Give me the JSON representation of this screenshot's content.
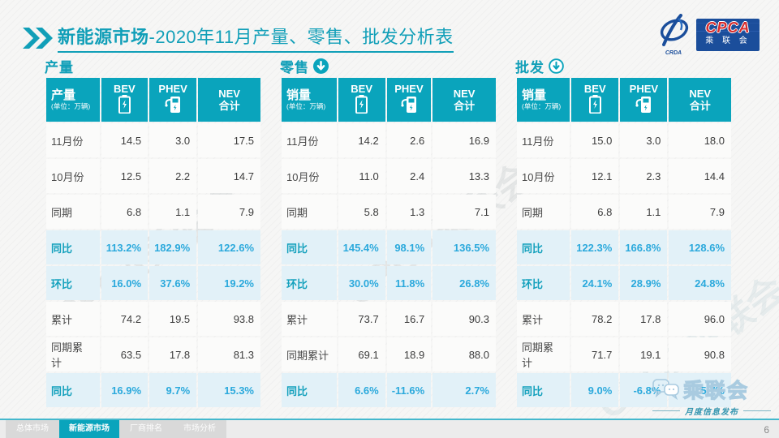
{
  "page": {
    "title_prefix": "新能源市场",
    "title_rest": "-2020年11月产量、零售、批发分析表",
    "page_number": "6",
    "watermark": "CPCA乘联会"
  },
  "logo": {
    "cpca": "CPCA",
    "crda": "CRDA",
    "org": "乘 联 会"
  },
  "columns": {
    "bev": "BEV",
    "phev": "PHEV",
    "nev_line1": "NEV",
    "nev_line2": "合计"
  },
  "unit_note": "(单位：万辆)",
  "tables": [
    {
      "section": "产量",
      "arrow": "none",
      "first_col": "产量",
      "rows": [
        {
          "label": "11月份",
          "bev": "14.5",
          "phev": "3.0",
          "nev": "17.5",
          "hl": false
        },
        {
          "label": "10月份",
          "bev": "12.5",
          "phev": "2.2",
          "nev": "14.7",
          "hl": false
        },
        {
          "label": "同期",
          "bev": "6.8",
          "phev": "1.1",
          "nev": "7.9",
          "hl": false
        },
        {
          "label": "同比",
          "bev": "113.2%",
          "phev": "182.9%",
          "nev": "122.6%",
          "hl": true
        },
        {
          "label": "环比",
          "bev": "16.0%",
          "phev": "37.6%",
          "nev": "19.2%",
          "hl": true
        },
        {
          "label": "累计",
          "bev": "74.2",
          "phev": "19.5",
          "nev": "93.8",
          "hl": false
        },
        {
          "label": "同期累计",
          "bev": "63.5",
          "phev": "17.8",
          "nev": "81.3",
          "hl": false
        },
        {
          "label": "同比",
          "bev": "16.9%",
          "phev": "9.7%",
          "nev": "15.3%",
          "hl": true
        }
      ]
    },
    {
      "section": "零售",
      "arrow": "filled",
      "first_col": "销量",
      "rows": [
        {
          "label": "11月份",
          "bev": "14.2",
          "phev": "2.6",
          "nev": "16.9",
          "hl": false
        },
        {
          "label": "10月份",
          "bev": "11.0",
          "phev": "2.4",
          "nev": "13.3",
          "hl": false
        },
        {
          "label": "同期",
          "bev": "5.8",
          "phev": "1.3",
          "nev": "7.1",
          "hl": false
        },
        {
          "label": "同比",
          "bev": "145.4%",
          "phev": "98.1%",
          "nev": "136.5%",
          "hl": true
        },
        {
          "label": "环比",
          "bev": "30.0%",
          "phev": "11.8%",
          "nev": "26.8%",
          "hl": true
        },
        {
          "label": "累计",
          "bev": "73.7",
          "phev": "16.7",
          "nev": "90.3",
          "hl": false
        },
        {
          "label": "同期累计",
          "bev": "69.1",
          "phev": "18.9",
          "nev": "88.0",
          "hl": false
        },
        {
          "label": "同比",
          "bev": "6.6%",
          "phev": "-11.6%",
          "nev": "2.7%",
          "hl": true
        }
      ]
    },
    {
      "section": "批发",
      "arrow": "outline",
      "first_col": "销量",
      "rows": [
        {
          "label": "11月份",
          "bev": "15.0",
          "phev": "3.0",
          "nev": "18.0",
          "hl": false
        },
        {
          "label": "10月份",
          "bev": "12.1",
          "phev": "2.3",
          "nev": "14.4",
          "hl": false
        },
        {
          "label": "同期",
          "bev": "6.8",
          "phev": "1.1",
          "nev": "7.9",
          "hl": false
        },
        {
          "label": "同比",
          "bev": "122.3%",
          "phev": "166.8%",
          "nev": "128.6%",
          "hl": true
        },
        {
          "label": "环比",
          "bev": "24.1%",
          "phev": "28.9%",
          "nev": "24.8%",
          "hl": true
        },
        {
          "label": "累计",
          "bev": "78.2",
          "phev": "17.8",
          "nev": "96.0",
          "hl": false
        },
        {
          "label": "同期累计",
          "bev": "71.7",
          "phev": "19.1",
          "nev": "90.8",
          "hl": false
        },
        {
          "label": "同比",
          "bev": "9.0%",
          "phev": "-6.8%",
          "nev": "5.7%",
          "hl": true
        }
      ]
    }
  ],
  "footer": {
    "tabs": [
      {
        "label": "总体市场",
        "active": false
      },
      {
        "label": "新能源市场",
        "active": true
      },
      {
        "label": "厂商排名",
        "active": false
      },
      {
        "label": "市场分析",
        "active": false
      }
    ],
    "wechat_org": "乘联会",
    "wechat_caption": "月度信息发布"
  }
}
